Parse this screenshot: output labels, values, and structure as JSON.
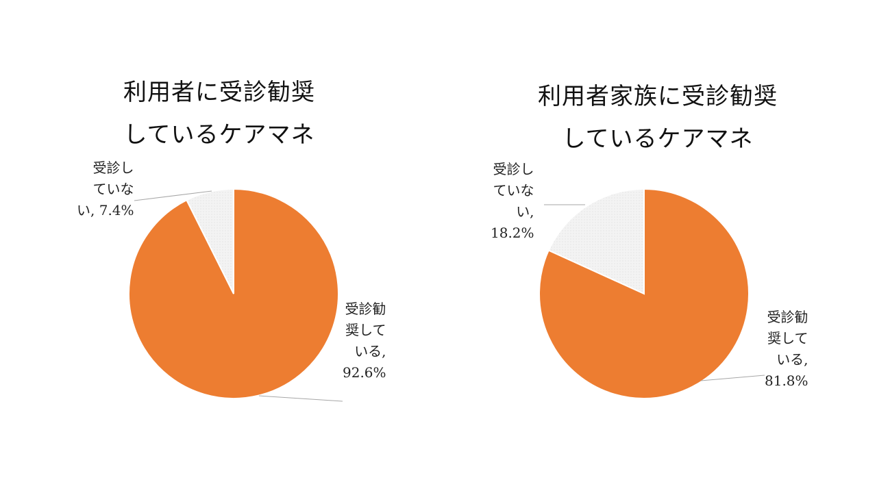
{
  "chart_data": [
    {
      "type": "pie",
      "title_lines": [
        "利用者に受診勧奨",
        "しているケアマネ"
      ],
      "slices": [
        {
          "label_lines": [
            "受診勧",
            "奨して",
            "いる,",
            "92.6%"
          ],
          "value": 92.6,
          "color": "#ED7D31"
        },
        {
          "label_lines": [
            "受診し",
            "ていな",
            "い, 7.4%"
          ],
          "value": 7.4,
          "color": "#F2F2F2"
        }
      ]
    },
    {
      "type": "pie",
      "title_lines": [
        "利用者家族に受診勧奨",
        "しているケアマネ"
      ],
      "slices": [
        {
          "label_lines": [
            "受診勧",
            "奨して",
            "いる,",
            "81.8%"
          ],
          "value": 81.8,
          "color": "#ED7D31"
        },
        {
          "label_lines": [
            "受診し",
            "ていな",
            "い,",
            "18.2%"
          ],
          "value": 18.2,
          "color": "#F2F2F2"
        }
      ]
    }
  ]
}
